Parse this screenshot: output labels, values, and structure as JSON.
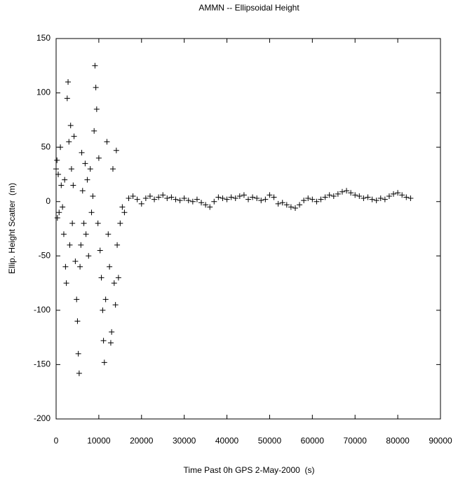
{
  "chart_data": {
    "type": "scatter",
    "title": "AMMN -- Ellipsoidal Height",
    "x_label": "Time Past 0h GPS 2-May-2000  (s)",
    "y_label": "Ellip. Height Scatter  (m)",
    "color": "#000000",
    "grid": false,
    "xlim": [
      0,
      90000
    ],
    "xticks": [
      0,
      10000,
      20000,
      30000,
      40000,
      50000,
      60000,
      70000,
      80000,
      90000
    ],
    "ylim": [
      -200,
      150
    ],
    "yticks": [
      -200,
      -150,
      -100,
      -50,
      0,
      50,
      100,
      150
    ],
    "series": [
      {
        "name": "AMMN",
        "x": [
          0,
          200,
          300,
          500,
          700,
          1000,
          1200,
          1500,
          1800,
          2000,
          2200,
          2400,
          2600,
          2800,
          3000,
          3200,
          3400,
          3600,
          3800,
          4000,
          4200,
          4500,
          4800,
          5000,
          5200,
          5400,
          5600,
          5800,
          6000,
          6200,
          6500,
          6800,
          7000,
          7300,
          7600,
          8000,
          8300,
          8600,
          8900,
          9100,
          9300,
          9500,
          9800,
          10000,
          10300,
          10600,
          10900,
          11100,
          11300,
          11600,
          11900,
          12200,
          12500,
          12800,
          13000,
          13300,
          13600,
          13900,
          14100,
          14300,
          14600,
          15000,
          15500,
          16000,
          17000,
          18000,
          19000,
          20000,
          21000,
          22000,
          23000,
          24000,
          25000,
          26000,
          27000,
          28000,
          29000,
          30000,
          31000,
          32000,
          33000,
          34000,
          35000,
          36000,
          37000,
          38000,
          39000,
          40000,
          41000,
          42000,
          43000,
          44000,
          45000,
          46000,
          47000,
          48000,
          49000,
          50000,
          51000,
          52000,
          53000,
          54000,
          55000,
          56000,
          57000,
          58000,
          59000,
          60000,
          61000,
          62000,
          63000,
          64000,
          65000,
          66000,
          67000,
          68000,
          69000,
          70000,
          71000,
          72000,
          73000,
          74000,
          75000,
          76000,
          77000,
          78000,
          79000,
          80000,
          81000,
          82000,
          83000
        ],
        "values": [
          30,
          38,
          -15,
          25,
          -10,
          50,
          15,
          -5,
          -30,
          20,
          -60,
          -75,
          95,
          110,
          55,
          -40,
          70,
          30,
          -20,
          15,
          60,
          -55,
          -90,
          -110,
          -140,
          -158,
          -60,
          -40,
          45,
          10,
          -20,
          35,
          -30,
          20,
          -50,
          30,
          -10,
          5,
          65,
          125,
          105,
          85,
          -20,
          40,
          -45,
          -70,
          -100,
          -128,
          -148,
          -90,
          55,
          -30,
          -60,
          -130,
          -120,
          30,
          -75,
          -95,
          47,
          -40,
          -70,
          -20,
          -5,
          -10,
          3,
          5,
          2,
          -2,
          3,
          5,
          2,
          4,
          6,
          3,
          4,
          2,
          1,
          3,
          1,
          0,
          2,
          -1,
          -3,
          -5,
          0,
          4,
          3,
          2,
          4,
          3,
          5,
          6,
          2,
          4,
          3,
          1,
          2,
          6,
          4,
          -2,
          -1,
          -3,
          -5,
          -6,
          -3,
          1,
          3,
          2,
          0,
          2,
          4,
          6,
          5,
          7,
          9,
          10,
          8,
          6,
          5,
          3,
          4,
          2,
          1,
          3,
          2,
          5,
          7,
          8,
          6,
          4,
          3
        ]
      }
    ]
  }
}
